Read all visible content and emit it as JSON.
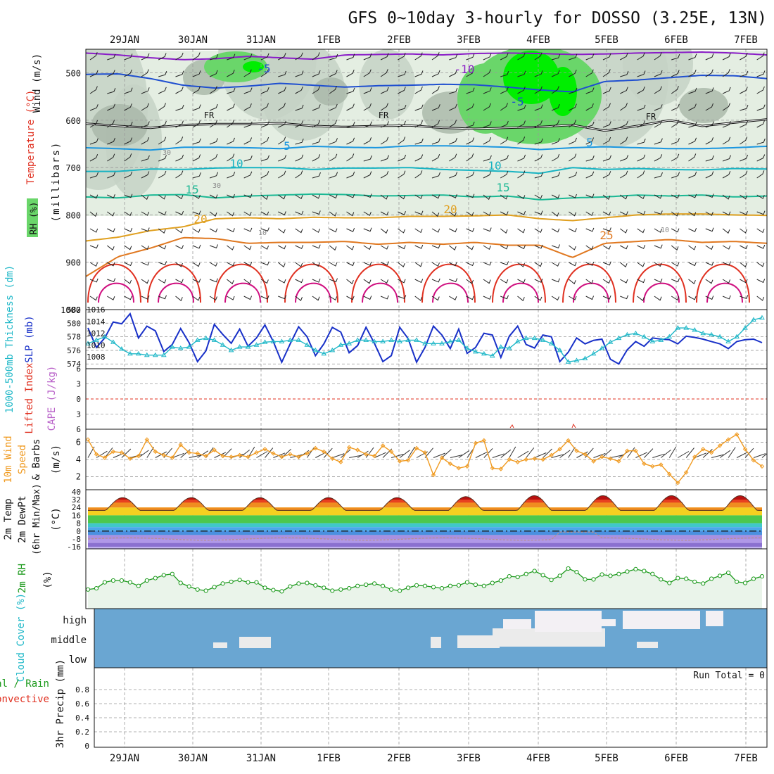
{
  "title": "GFS 0~10day 3-hourly for DOSSO (3.25E, 13N)",
  "colors": {
    "grid": "#999999",
    "rh_light": "#e4eee2",
    "rh_mid": "#c5d2c5",
    "rh_dark": "#a8b7a8",
    "rh_green": "#6ad66a",
    "rh_bright": "#00ee00",
    "temp_m10": "#8a1cc8",
    "temp_m5": "#1f4fd0",
    "temp_5": "#1a96e0",
    "temp_10": "#17b3c2",
    "temp_15": "#1ab894",
    "temp_20": "#e0a020",
    "temp_25": "#e07820",
    "temp_30": "#e03020",
    "temp_35": "#d01080",
    "slp": "#1830c8",
    "thickness": "#20b8c8",
    "cape_zero": "#e03020",
    "wind_speed": "#f09a20",
    "rh2m_line": "#1c9a1c",
    "rh2m_fill": "#eaf4ea",
    "dewpt": "#b89090",
    "cloud_bg": "#6aa6d2",
    "cloud_fill": "#ebebeb",
    "cloud_high": "#f3f0f4",
    "precip_total": "#1c9a1c",
    "precip_conv": "#e03020"
  },
  "chart_data": [
    {
      "panel": "upper_air",
      "type": "contour",
      "x_labels": [
        "29JAN",
        "30JAN",
        "31JAN",
        "1FEB",
        "2FEB",
        "3FEB",
        "4FEB",
        "5FEB",
        "6FEB",
        "7FEB"
      ],
      "ylabel_parts": [
        "Wind (m/s)",
        "Temperature (°C)",
        "RH (%)",
        "(millibars)"
      ],
      "ylabel_wind": "Wind (m/s)",
      "ylabel_temp": "Temperature (°C)",
      "ylabel_rh": "RH (%)",
      "ylabel_mb": "(millibars)",
      "y_ticks": [
        500,
        600,
        700,
        800,
        900,
        1000
      ],
      "ylim": [
        450,
        1000
      ],
      "contour_labels": [
        "-10",
        "-5",
        "-5",
        "5",
        "5",
        "10",
        "10",
        "15",
        "15",
        "20",
        "20",
        "25",
        "FR",
        "FR",
        "FR",
        "30",
        "30",
        "10",
        "10"
      ],
      "isotherms": [
        {
          "label": "-10",
          "values": [
            458,
            462,
            468,
            472,
            470,
            465,
            468,
            471,
            462,
            461,
            460,
            462,
            459,
            458,
            459,
            461,
            460,
            458,
            457,
            456,
            458,
            462
          ]
        },
        {
          "label": "-5",
          "values": [
            503,
            502,
            512,
            526,
            532,
            528,
            522,
            526,
            530,
            527,
            526,
            524,
            525,
            530,
            536,
            540,
            518,
            515,
            510,
            505,
            506,
            512
          ]
        },
        {
          "label": "FR",
          "values": [
            607,
            612,
            616,
            610,
            608,
            608,
            606,
            612,
            614,
            612,
            611,
            616,
            618,
            616,
            614,
            610,
            622,
            612,
            600,
            612,
            605,
            598
          ]
        },
        {
          "label": "5",
          "values": [
            658,
            660,
            663,
            657,
            657,
            658,
            660,
            655,
            657,
            658,
            654,
            654,
            655,
            657,
            662,
            658,
            656,
            658,
            660,
            660,
            658,
            655
          ]
        },
        {
          "label": "10",
          "values": [
            708,
            708,
            703,
            704,
            701,
            700,
            700,
            704,
            701,
            701,
            700,
            704,
            706,
            708,
            712,
            700,
            704,
            702,
            704,
            705,
            702,
            703
          ]
        },
        {
          "label": "15",
          "values": [
            762,
            764,
            758,
            757,
            764,
            760,
            758,
            756,
            757,
            760,
            759,
            758,
            762,
            760,
            768,
            764,
            762,
            758,
            760,
            758,
            762,
            760
          ]
        },
        {
          "label": "20",
          "values": [
            855,
            847,
            833,
            825,
            808,
            806,
            808,
            805,
            806,
            806,
            803,
            803,
            802,
            800,
            808,
            812,
            806,
            800,
            798,
            798,
            800,
            801
          ]
        },
        {
          "label": "25",
          "values": [
            930,
            888,
            870,
            848,
            850,
            860,
            858,
            858,
            856,
            862,
            858,
            862,
            858,
            864,
            864,
            890,
            860,
            856,
            852,
            858,
            856,
            860
          ]
        }
      ]
    },
    {
      "panel": "slp_thickness",
      "type": "line",
      "ylabel_left": "1000-500mb Thickness (dm)",
      "ylabel_right": "SLP (mb)",
      "y_ticks_left": [
        574,
        576,
        578,
        580,
        582
      ],
      "y_ticks_right": [
        1008,
        1010,
        1012,
        1014,
        1016
      ],
      "ylim_left": [
        573.3,
        582
      ],
      "ylim_right": [
        1006,
        1016
      ],
      "series": [
        {
          "name": "SLP",
          "values": [
            1012.9,
            1009.6,
            1011.2,
            1013.9,
            1013.6,
            1015.3,
            1011.2,
            1013.2,
            1012.4,
            1008.9,
            1010.1,
            1012.8,
            1010.4,
            1007.2,
            1009.0,
            1013.5,
            1011.8,
            1010.3,
            1012.7,
            1009.8,
            1011.2,
            1013.4,
            1010.6,
            1007.1,
            1010.2,
            1013.1,
            1011.4,
            1008.2,
            1010.2,
            1013.0,
            1012.2,
            1008.7,
            1009.9,
            1013.0,
            1010.3,
            1007.2,
            1008.2,
            1013.0,
            1011.1,
            1007.1,
            1009.6,
            1013.2,
            1011.7,
            1009.4,
            1012.7,
            1008.6,
            1009.6,
            1012.0,
            1011.7,
            1007.9,
            1011.5,
            1013.2,
            1010.1,
            1009.5,
            1011.7,
            1011.4,
            1007.2,
            1008.8,
            1011.2,
            1010.2,
            1010.8,
            1011.0,
            1007.6,
            1006.8,
            1009.2,
            1010.6,
            1009.8,
            1011.2,
            1011.0,
            1010.9,
            1010.2,
            1011.5,
            1011.3,
            1011.0,
            1010.6,
            1010.2,
            1009.4,
            1010.6,
            1010.9,
            1011.0,
            1010.4
          ]
        },
        {
          "name": "1000-500mb Thickness",
          "values": [
            577,
            577.5,
            578,
            577.2,
            576.2,
            575.5,
            575.5,
            575.3,
            575.3,
            575.3,
            576.5,
            576.3,
            576.5,
            577.5,
            577.8,
            577.5,
            576.8,
            576,
            576.5,
            576.5,
            576.8,
            577.2,
            577.3,
            577.3,
            577.5,
            577.5,
            576.8,
            576,
            575.5,
            576,
            576.8,
            577,
            577.5,
            577.5,
            577.3,
            577.3,
            577.5,
            577.3,
            577.5,
            577.5,
            577,
            577,
            577,
            577.3,
            577.5,
            576.3,
            575.8,
            575.5,
            575.2,
            576.5,
            576.3,
            577.3,
            577.8,
            577.8,
            577.5,
            577,
            576,
            574.3,
            574.5,
            574.8,
            575.5,
            576.3,
            577.2,
            577.8,
            578.3,
            578.5,
            578,
            577.3,
            577.5,
            578,
            579.3,
            579.3,
            579,
            578.5,
            578.3,
            578,
            577.3,
            578,
            579.3,
            580.5,
            580.8
          ]
        }
      ]
    },
    {
      "panel": "cape_li",
      "type": "line",
      "ylabel_left": "Lifted Index",
      "ylabel_right": "CAPE (J/kg)",
      "y_ticks": [
        6,
        3,
        0,
        -3,
        -6
      ],
      "ylim": [
        -6,
        6
      ]
    },
    {
      "panel": "wind10m",
      "type": "line",
      "ylabel": "10m Wind Speed & Barbs (m/s)",
      "ylabel_l1": "10m Wind",
      "ylabel_l2": "Speed",
      "ylabel_l3": "& Barbs",
      "ylabel_l4": "(m/s)",
      "y_ticks": [
        2,
        4,
        6
      ],
      "ylim": [
        0.5,
        7.5
      ],
      "series": [
        {
          "name": "Wind Speed",
          "values": [
            6.3,
            4.6,
            4.2,
            4.9,
            4.8,
            4.1,
            4.4,
            6.3,
            4.9,
            4.5,
            4.2,
            5.7,
            4.8,
            4.7,
            4.4,
            5.1,
            4.4,
            4.3,
            4.5,
            4.3,
            4.8,
            5.2,
            4.7,
            4.3,
            4.6,
            4.3,
            4.7,
            5.3,
            4.9,
            4.1,
            3.7,
            5.4,
            5.1,
            4.6,
            4.4,
            5.6,
            4.9,
            3.8,
            3.9,
            5.3,
            4.8,
            2.2,
            4.2,
            3.5,
            3.0,
            3.2,
            5.9,
            6.2,
            3.0,
            2.9,
            4.0,
            3.7,
            4.0,
            4.1,
            4.0,
            4.5,
            5.2,
            6.2,
            5.0,
            4.6,
            3.8,
            4.3,
            4.1,
            3.8,
            5.0,
            5.0,
            3.5,
            3.2,
            3.4,
            2.3,
            1.3,
            2.5,
            4.3,
            5.2,
            4.8,
            5.6,
            6.3,
            6.9,
            5.2,
            3.9,
            3.2
          ]
        }
      ]
    },
    {
      "panel": "temp2m",
      "type": "area",
      "ylabel": "2m Temp 2m DewPt (6hr Min/Max) (°C)",
      "ylabel_l1": "2m Temp",
      "ylabel_l2": "2m DewPt",
      "ylabel_l3": "(6hr Min/Max)",
      "ylabel_l4": "(°C)",
      "y_ticks": [
        40,
        32,
        24,
        16,
        8,
        0,
        -8,
        -16
      ],
      "ylim": [
        -18,
        42
      ],
      "daily_max": [
        34,
        34,
        34,
        34,
        34,
        35,
        36,
        36,
        36
      ],
      "daily_min": [
        21,
        21,
        21,
        21,
        21,
        21,
        21,
        21,
        21
      ],
      "dewpoint_mean": -8
    },
    {
      "panel": "rh2m",
      "type": "line",
      "ylabel": "2m RH",
      "ylabel_unit": "(%)",
      "ylim": [
        0,
        100
      ],
      "series": [
        {
          "name": "2m RH",
          "values": [
            32,
            34,
            44,
            47,
            47,
            44,
            38,
            47,
            51,
            56,
            58,
            43,
            37,
            32,
            30,
            36,
            42,
            45,
            48,
            44,
            44,
            35,
            31,
            29,
            37,
            42,
            43,
            39,
            35,
            30,
            32,
            34,
            38,
            40,
            42,
            38,
            32,
            30,
            35,
            39,
            38,
            36,
            34,
            38,
            39,
            44,
            40,
            38,
            43,
            47,
            54,
            53,
            58,
            63,
            56,
            48,
            55,
            67,
            61,
            49,
            49,
            57,
            55,
            58,
            62,
            66,
            63,
            58,
            49,
            43,
            51,
            50,
            45,
            42,
            50,
            55,
            60,
            45,
            43,
            50,
            54
          ]
        }
      ]
    },
    {
      "panel": "cloud",
      "type": "area",
      "ylabel": "Cloud Cover (%)",
      "levels": [
        "high",
        "middle",
        "low"
      ]
    },
    {
      "panel": "precip",
      "type": "bar",
      "ylabel_left_l1": "Total / Rain",
      "ylabel_left_l2": "Convective",
      "ylabel_right": "3hr Precip (mm)",
      "y_ticks": [
        0,
        0.2,
        0.4,
        0.6,
        0.8
      ],
      "ylim": [
        0,
        1
      ],
      "run_total_label": "Run Total = 0",
      "values": []
    }
  ]
}
